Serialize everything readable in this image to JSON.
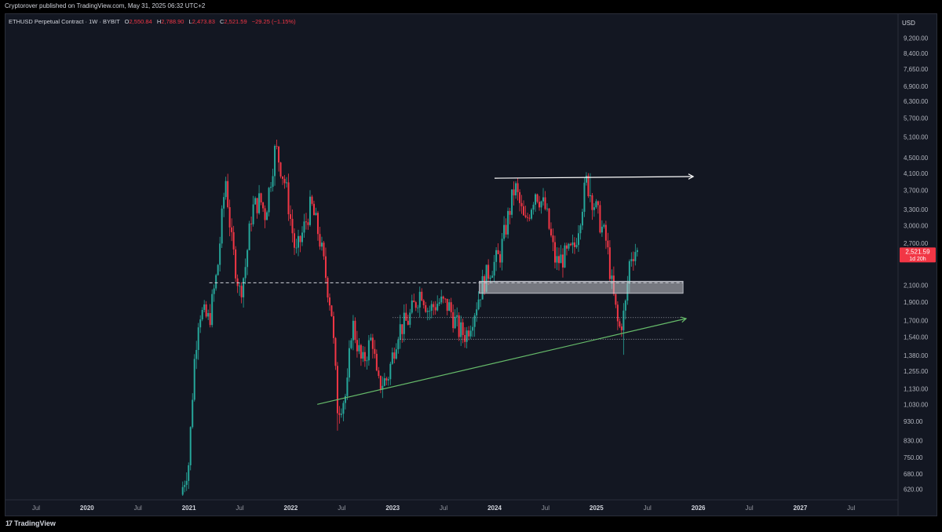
{
  "header": {
    "published": "Cryptorover published on TradingView.com, May 31, 2025 06:32 UTC+2"
  },
  "legend": {
    "symbol": "ETHUSD Perpetual Contract · 1W · BYBIT",
    "o_label": "O",
    "o_value": "2,550.84",
    "h_label": "H",
    "h_value": "2,788.90",
    "l_label": "L",
    "l_value": "2,473.83",
    "c_label": "C",
    "c_value": "2,521.59",
    "change": "−29.25 (−1.15%)"
  },
  "price_axis": {
    "currency": "USD",
    "last_price": "2,521.59",
    "countdown": "1d 20h"
  },
  "footer": {
    "brand": "TradingView"
  },
  "colors": {
    "up": "#26a69a",
    "down": "#f23645",
    "trend": "#4caf50",
    "background": "#131722"
  },
  "chart_data": {
    "type": "candlestick",
    "scale": "log",
    "ylim": [
      600,
      9700
    ],
    "y_ticks": [
      9200,
      8400,
      7650,
      6900,
      6300,
      5700,
      5100,
      4500,
      4100,
      3700,
      3300,
      3000,
      2700,
      2100,
      1900,
      1700,
      1540,
      1380,
      1255,
      1130,
      1030,
      930,
      830,
      750,
      680,
      620
    ],
    "y_tick_labels": [
      "9,200.00",
      "8,400.00",
      "7,650.00",
      "6,900.00",
      "6,300.00",
      "5,700.00",
      "5,100.00",
      "4,500.00",
      "4,100.00",
      "3,700.00",
      "3,300.00",
      "3,000.00",
      "2,700.00",
      "2,100.00",
      "1,900.00",
      "1,700.00",
      "1,540.00",
      "1,380.00",
      "1,255.00",
      "1,130.00",
      "1,030.00",
      "930.00",
      "830.00",
      "750.00",
      "680.00",
      "620.00"
    ],
    "x_ticks": [
      {
        "t": 2019.5,
        "label": "Jul",
        "bold": false
      },
      {
        "t": 2020.0,
        "label": "2020",
        "bold": true
      },
      {
        "t": 2020.5,
        "label": "Jul",
        "bold": false
      },
      {
        "t": 2021.0,
        "label": "2021",
        "bold": true
      },
      {
        "t": 2021.5,
        "label": "Jul",
        "bold": false
      },
      {
        "t": 2022.0,
        "label": "2022",
        "bold": true
      },
      {
        "t": 2022.5,
        "label": "Jul",
        "bold": false
      },
      {
        "t": 2023.0,
        "label": "2023",
        "bold": true
      },
      {
        "t": 2023.5,
        "label": "Jul",
        "bold": false
      },
      {
        "t": 2024.0,
        "label": "2024",
        "bold": true
      },
      {
        "t": 2024.5,
        "label": "Jul",
        "bold": false
      },
      {
        "t": 2025.0,
        "label": "2025",
        "bold": true
      },
      {
        "t": 2025.5,
        "label": "Jul",
        "bold": false
      },
      {
        "t": 2026.0,
        "label": "2026",
        "bold": true
      },
      {
        "t": 2026.5,
        "label": "Jul",
        "bold": false
      },
      {
        "t": 2027.0,
        "label": "2027",
        "bold": true
      },
      {
        "t": 2027.5,
        "label": "Jul",
        "bold": false
      }
    ],
    "xlim": [
      2019.2,
      2027.96
    ],
    "price_path": [
      [
        2020.92,
        600
      ],
      [
        2021.0,
        730
      ],
      [
        2021.05,
        1300
      ],
      [
        2021.1,
        1800
      ],
      [
        2021.2,
        1700
      ],
      [
        2021.28,
        2300
      ],
      [
        2021.36,
        4000
      ],
      [
        2021.42,
        2700
      ],
      [
        2021.5,
        2000
      ],
      [
        2021.55,
        2300
      ],
      [
        2021.62,
        3300
      ],
      [
        2021.7,
        3500
      ],
      [
        2021.75,
        3200
      ],
      [
        2021.85,
        4800
      ],
      [
        2021.95,
        3800
      ],
      [
        2022.05,
        2500
      ],
      [
        2022.12,
        2900
      ],
      [
        2022.2,
        3400
      ],
      [
        2022.28,
        2800
      ],
      [
        2022.4,
        1800
      ],
      [
        2022.46,
        1000
      ],
      [
        2022.55,
        1100
      ],
      [
        2022.6,
        1700
      ],
      [
        2022.7,
        1300
      ],
      [
        2022.8,
        1550
      ],
      [
        2022.85,
        1150
      ],
      [
        2022.95,
        1200
      ],
      [
        2023.05,
        1600
      ],
      [
        2023.15,
        1700
      ],
      [
        2023.28,
        2050
      ],
      [
        2023.35,
        1800
      ],
      [
        2023.45,
        1900
      ],
      [
        2023.55,
        1850
      ],
      [
        2023.65,
        1600
      ],
      [
        2023.72,
        1560
      ],
      [
        2023.8,
        1800
      ],
      [
        2023.88,
        2100
      ],
      [
        2023.95,
        2300
      ],
      [
        2024.05,
        2500
      ],
      [
        2024.2,
        3800
      ],
      [
        2024.3,
        3000
      ],
      [
        2024.4,
        3700
      ],
      [
        2024.5,
        3300
      ],
      [
        2024.6,
        2400
      ],
      [
        2024.7,
        2500
      ],
      [
        2024.78,
        2600
      ],
      [
        2024.9,
        3900
      ],
      [
        2024.98,
        3400
      ],
      [
        2025.1,
        2700
      ],
      [
        2025.15,
        2100
      ],
      [
        2025.22,
        1600
      ],
      [
        2025.28,
        1800
      ],
      [
        2025.33,
        2500
      ],
      [
        2025.38,
        2600
      ],
      [
        2025.41,
        2521.59
      ]
    ],
    "wick_extremes": [
      {
        "t": 2021.85,
        "high": 4870
      },
      {
        "t": 2022.46,
        "low": 880
      },
      {
        "t": 2024.93,
        "high": 4100
      },
      {
        "t": 2025.27,
        "low": 1385
      }
    ],
    "annotations": {
      "resistance_line": {
        "t1": 2024.0,
        "p1": 3980,
        "t2": 2025.95,
        "p2": 4020
      },
      "support_trendline": {
        "t1": 2022.26,
        "p1": 1030,
        "t2": 2025.88,
        "p2": 1720
      },
      "dashed_level": {
        "t1": 2021.2,
        "t2": 2025.85,
        "p": 2130
      },
      "dotted_level_1": {
        "t1": 2023.0,
        "t2": 2025.85,
        "p": 1730
      },
      "dotted_level_2": {
        "t1": 2023.05,
        "t2": 2025.85,
        "p": 1520
      },
      "zone": {
        "t1": 2023.85,
        "t2": 2025.85,
        "p_low": 2000,
        "p_high": 2150
      }
    }
  }
}
